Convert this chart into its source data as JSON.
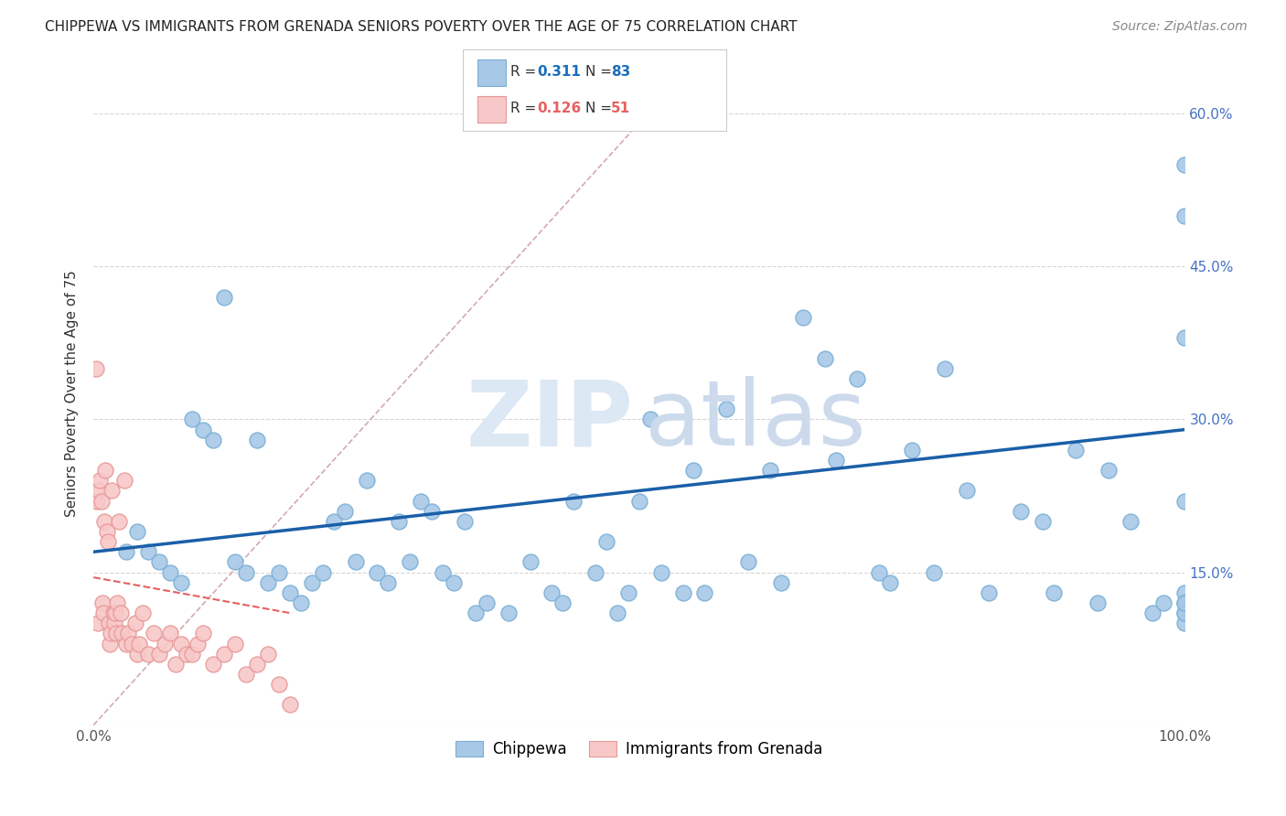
{
  "title": "CHIPPEWA VS IMMIGRANTS FROM GRENADA SENIORS POVERTY OVER THE AGE OF 75 CORRELATION CHART",
  "source": "Source: ZipAtlas.com",
  "ylabel": "Seniors Poverty Over the Age of 75",
  "xlim": [
    0,
    100
  ],
  "ylim": [
    0,
    65
  ],
  "ytick_vals": [
    0,
    15,
    30,
    45,
    60
  ],
  "ytick_labels": [
    "",
    "15.0%",
    "30.0%",
    "45.0%",
    "60.0%"
  ],
  "xtick_vals": [
    0,
    10,
    20,
    30,
    40,
    50,
    60,
    70,
    80,
    90,
    100
  ],
  "xtick_labels": [
    "0.0%",
    "",
    "",
    "",
    "",
    "",
    "",
    "",
    "",
    "",
    "100.0%"
  ],
  "legend_r1": "0.311",
  "legend_n1": "83",
  "legend_r2": "0.126",
  "legend_n2": "51",
  "blue_color": "#a8c8e8",
  "blue_edge": "#7aafd4",
  "pink_color": "#f8c8c8",
  "pink_edge": "#e89898",
  "trend_blue": "#1a5fa8",
  "trend_pink": "#e86060",
  "ref_line_color": "#d0a0a8",
  "watermark_zip_color": "#d8e4f0",
  "watermark_atlas_color": "#c8d8e8",
  "chippewa_x": [
    3,
    4,
    5,
    6,
    7,
    8,
    9,
    10,
    11,
    12,
    13,
    14,
    15,
    16,
    17,
    18,
    19,
    20,
    21,
    22,
    23,
    24,
    25,
    26,
    27,
    28,
    29,
    30,
    31,
    32,
    33,
    34,
    35,
    36,
    38,
    40,
    42,
    43,
    44,
    46,
    47,
    48,
    49,
    50,
    51,
    52,
    54,
    55,
    56,
    58,
    60,
    62,
    63,
    65,
    67,
    68,
    70,
    72,
    73,
    75,
    77,
    78,
    80,
    82,
    85,
    87,
    88,
    90,
    92,
    93,
    95,
    97,
    98,
    100,
    100,
    100,
    100,
    100,
    100,
    100,
    100,
    100,
    100
  ],
  "chippewa_y": [
    17,
    19,
    17,
    16,
    15,
    14,
    30,
    29,
    28,
    42,
    16,
    15,
    28,
    14,
    15,
    13,
    12,
    14,
    15,
    20,
    21,
    16,
    24,
    15,
    14,
    20,
    16,
    22,
    21,
    15,
    14,
    20,
    11,
    12,
    11,
    16,
    13,
    12,
    22,
    15,
    18,
    11,
    13,
    22,
    30,
    15,
    13,
    25,
    13,
    31,
    16,
    25,
    14,
    40,
    36,
    26,
    34,
    15,
    14,
    27,
    15,
    35,
    23,
    13,
    21,
    20,
    13,
    27,
    12,
    25,
    20,
    11,
    12,
    50,
    38,
    22,
    13,
    12,
    11,
    55,
    10,
    11,
    12
  ],
  "grenada_x": [
    0.2,
    0.3,
    0.4,
    0.5,
    0.6,
    0.7,
    0.8,
    0.9,
    1.0,
    1.1,
    1.2,
    1.3,
    1.4,
    1.5,
    1.6,
    1.7,
    1.8,
    1.9,
    2.0,
    2.1,
    2.2,
    2.3,
    2.5,
    2.6,
    2.8,
    3.0,
    3.2,
    3.5,
    3.8,
    4.0,
    4.2,
    4.5,
    5.0,
    5.5,
    6.0,
    6.5,
    7.0,
    7.5,
    8.0,
    8.5,
    9.0,
    9.5,
    10.0,
    11.0,
    12.0,
    13.0,
    14.0,
    15.0,
    16.0,
    17.0,
    18.0
  ],
  "grenada_y": [
    35,
    22,
    10,
    23,
    24,
    22,
    12,
    11,
    20,
    25,
    19,
    18,
    10,
    8,
    9,
    23,
    11,
    10,
    11,
    9,
    12,
    20,
    11,
    9,
    24,
    8,
    9,
    8,
    10,
    7,
    8,
    11,
    7,
    9,
    7,
    8,
    9,
    6,
    8,
    7,
    7,
    8,
    9,
    6,
    7,
    8,
    5,
    6,
    7,
    4,
    2
  ],
  "trend_blue_start_y": 17.0,
  "trend_blue_end_y": 29.0,
  "trend_pink_start_x": 0,
  "trend_pink_start_y": 14.5,
  "trend_pink_end_x": 18,
  "trend_pink_end_y": 11.0
}
